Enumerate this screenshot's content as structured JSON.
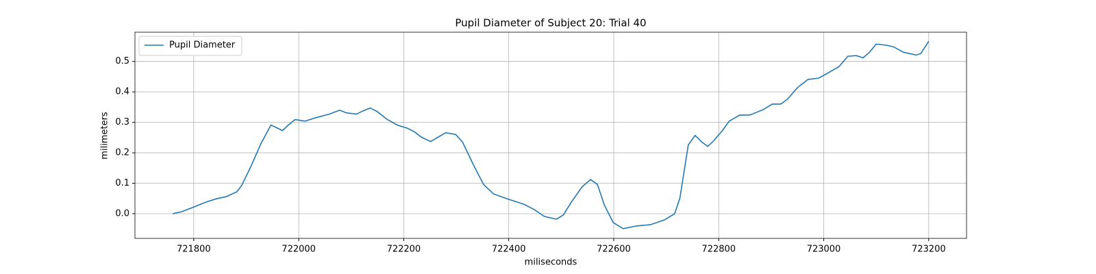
{
  "chart_data": {
    "type": "line",
    "title": "Pupil Diameter of Subject 20: Trial 40",
    "xlabel": "miliseconds",
    "ylabel": "milimeters",
    "x": [
      721760,
      721778,
      721800,
      721823,
      721843,
      721862,
      721882,
      721891,
      721908,
      721928,
      721947,
      721956,
      721969,
      721980,
      721993,
      722012,
      722032,
      722058,
      722078,
      722091,
      722110,
      722123,
      722136,
      722149,
      722169,
      722188,
      722208,
      722221,
      722234,
      722251,
      722267,
      722280,
      722299,
      722312,
      722332,
      722352,
      722371,
      722397,
      722429,
      722449,
      722468,
      722491,
      722504,
      722520,
      722540,
      722556,
      722569,
      722582,
      722599,
      722618,
      722644,
      722670,
      722697,
      722716,
      722726,
      722742,
      722755,
      722768,
      722779,
      722788,
      722807,
      722820,
      722840,
      722859,
      722885,
      722902,
      722918,
      722931,
      722950,
      722970,
      722990,
      723009,
      723029,
      723046,
      723062,
      723075,
      723087,
      723100,
      723120,
      723133,
      723152,
      723176,
      723185,
      723200
    ],
    "series": [
      {
        "name": "Pupil Diameter",
        "color": "#1f77b4",
        "values": [
          0.0,
          0.007,
          0.022,
          0.038,
          0.049,
          0.056,
          0.072,
          0.092,
          0.152,
          0.23,
          0.291,
          0.284,
          0.273,
          0.291,
          0.309,
          0.304,
          0.315,
          0.327,
          0.34,
          0.331,
          0.327,
          0.338,
          0.347,
          0.336,
          0.309,
          0.291,
          0.28,
          0.268,
          0.251,
          0.237,
          0.253,
          0.266,
          0.26,
          0.235,
          0.163,
          0.096,
          0.065,
          0.049,
          0.031,
          0.013,
          -0.009,
          -0.018,
          -0.004,
          0.04,
          0.089,
          0.112,
          0.096,
          0.029,
          -0.029,
          -0.049,
          -0.04,
          -0.036,
          -0.02,
          0.0,
          0.051,
          0.226,
          0.257,
          0.235,
          0.221,
          0.235,
          0.273,
          0.304,
          0.324,
          0.324,
          0.342,
          0.36,
          0.36,
          0.376,
          0.414,
          0.441,
          0.445,
          0.463,
          0.483,
          0.517,
          0.519,
          0.512,
          0.53,
          0.557,
          0.553,
          0.548,
          0.53,
          0.521,
          0.526,
          0.566
        ]
      }
    ],
    "xlim": [
      721688,
      723272
    ],
    "ylim": [
      -0.081,
      0.596
    ],
    "xticks": [
      721800,
      722000,
      722200,
      722400,
      722600,
      722800,
      723000,
      723200
    ],
    "yticks": [
      {
        "value": 0,
        "label": "0.0"
      },
      0.1,
      0.2,
      0.3,
      0.4,
      0.5
    ],
    "grid": true,
    "legend": "upper left"
  }
}
